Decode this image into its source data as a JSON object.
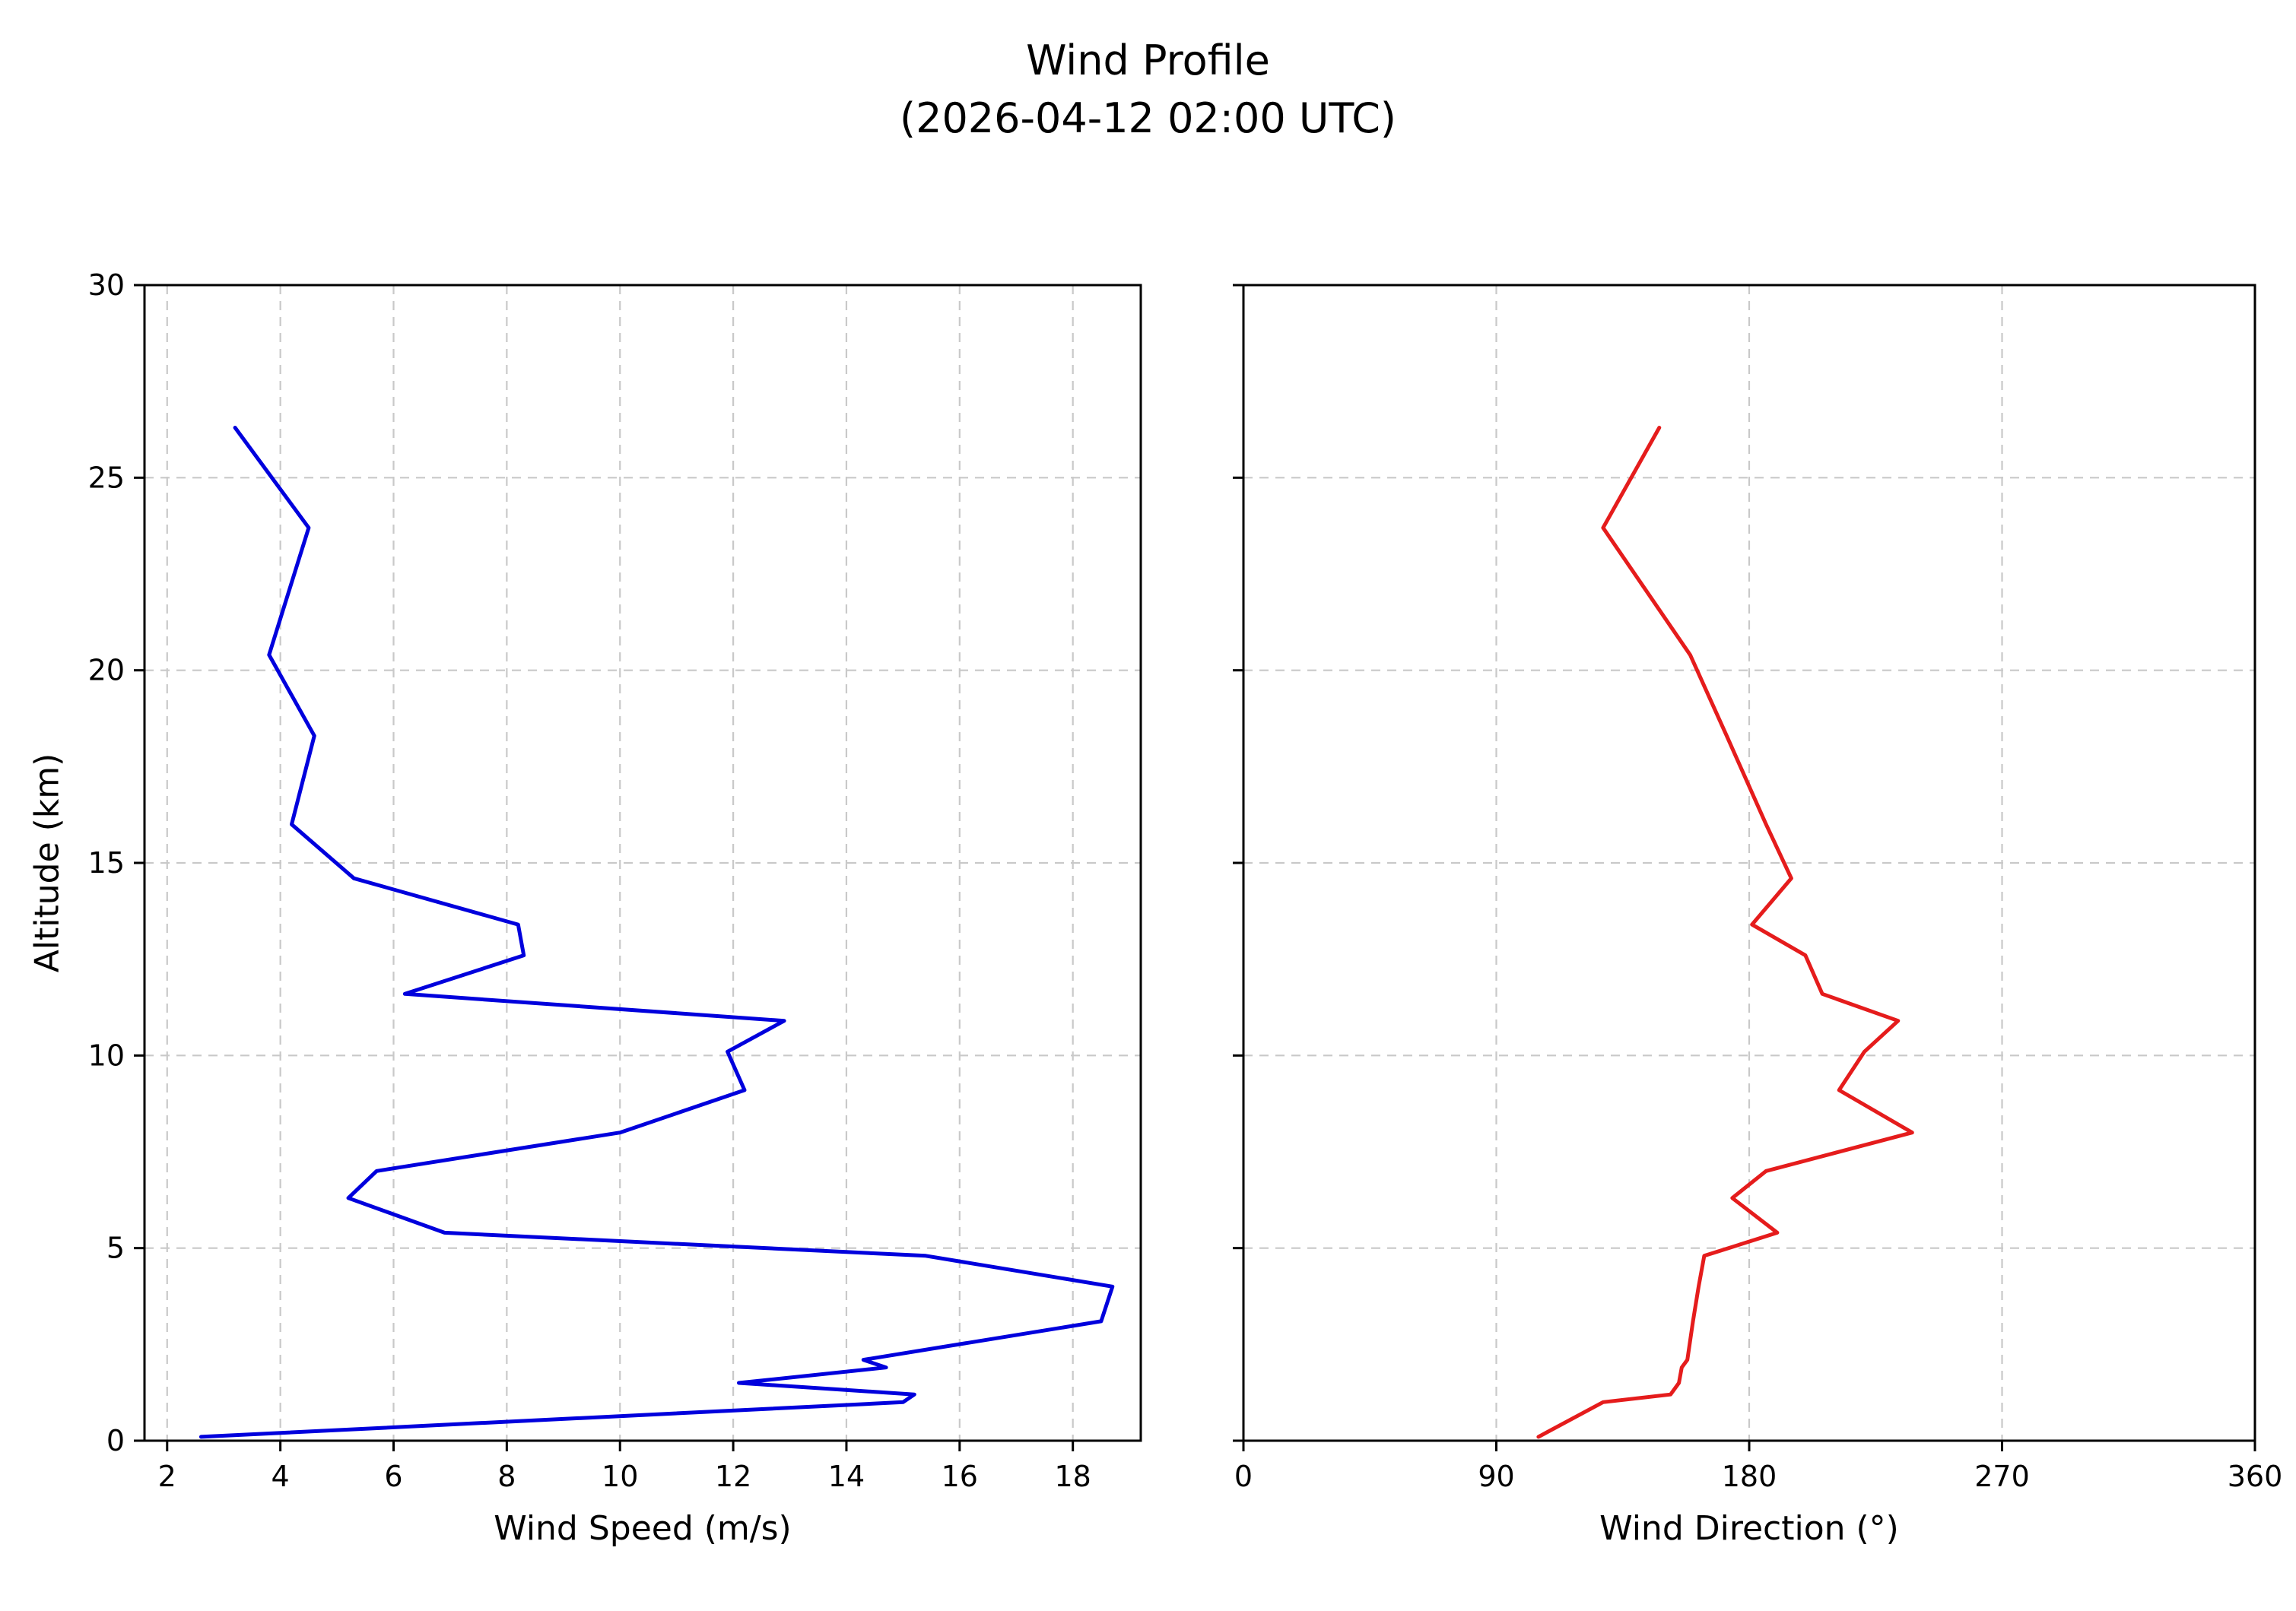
{
  "title": "Wind Profile",
  "subtitle": "(2026-04-12 02:00 UTC)",
  "colors": {
    "speed_line": "#0000dd",
    "direction_line": "#e51c1c",
    "grid": "#c9c9c9",
    "axis": "#000000",
    "background": "#ffffff"
  },
  "chart_data": [
    {
      "type": "line",
      "name": "wind-speed-subplot",
      "title": "Wind Profile (2026-04-12 02:00 UTC)",
      "xlabel": "Wind Speed (m/s)",
      "ylabel": "Altitude (km)",
      "xlim": [
        1.6,
        19.2
      ],
      "ylim": [
        0,
        30
      ],
      "xticks": [
        2,
        4,
        6,
        8,
        10,
        12,
        14,
        16,
        18
      ],
      "yticks": [
        0,
        5,
        10,
        15,
        20,
        25,
        30
      ],
      "grid": true,
      "show_yticklabels": true,
      "series": [
        {
          "name": "wind-speed",
          "color": "#0000dd",
          "x": [
            2.6,
            15.0,
            15.2,
            12.1,
            14.7,
            14.3,
            18.5,
            18.7,
            15.4,
            6.9,
            5.2,
            5.7,
            10.0,
            12.2,
            11.9,
            12.9,
            6.2,
            8.3,
            8.2,
            5.3,
            4.2,
            4.6,
            3.8,
            4.5,
            3.2
          ],
          "y": [
            0.1,
            1.0,
            1.2,
            1.5,
            1.9,
            2.1,
            3.1,
            4.0,
            4.8,
            5.4,
            6.3,
            7.0,
            8.0,
            9.1,
            10.1,
            10.9,
            11.6,
            12.6,
            13.4,
            14.6,
            16.0,
            18.3,
            20.4,
            23.7,
            26.3
          ]
        }
      ]
    },
    {
      "type": "line",
      "name": "wind-direction-subplot",
      "title": "Wind Profile (2026-04-12 02:00 UTC)",
      "xlabel": "Wind Direction (°)",
      "ylabel": "",
      "xlim": [
        0,
        360
      ],
      "ylim": [
        0,
        30
      ],
      "xticks": [
        0,
        90,
        180,
        270,
        360
      ],
      "yticks": [
        0,
        5,
        10,
        15,
        20,
        25,
        30
      ],
      "grid": true,
      "show_yticklabels": false,
      "series": [
        {
          "name": "wind-direction",
          "color": "#e51c1c",
          "x": [
            105,
            128,
            152,
            155,
            156,
            158,
            160,
            162,
            164,
            190,
            174,
            186,
            238,
            212,
            221,
            233,
            206,
            200,
            181,
            195,
            186,
            172,
            159,
            128,
            148
          ],
          "y": [
            0.1,
            1.0,
            1.2,
            1.5,
            1.9,
            2.1,
            3.1,
            4.0,
            4.8,
            5.4,
            6.3,
            7.0,
            8.0,
            9.1,
            10.1,
            10.9,
            11.6,
            12.6,
            13.4,
            14.6,
            16.0,
            18.3,
            20.4,
            23.7,
            26.3
          ]
        }
      ]
    }
  ]
}
